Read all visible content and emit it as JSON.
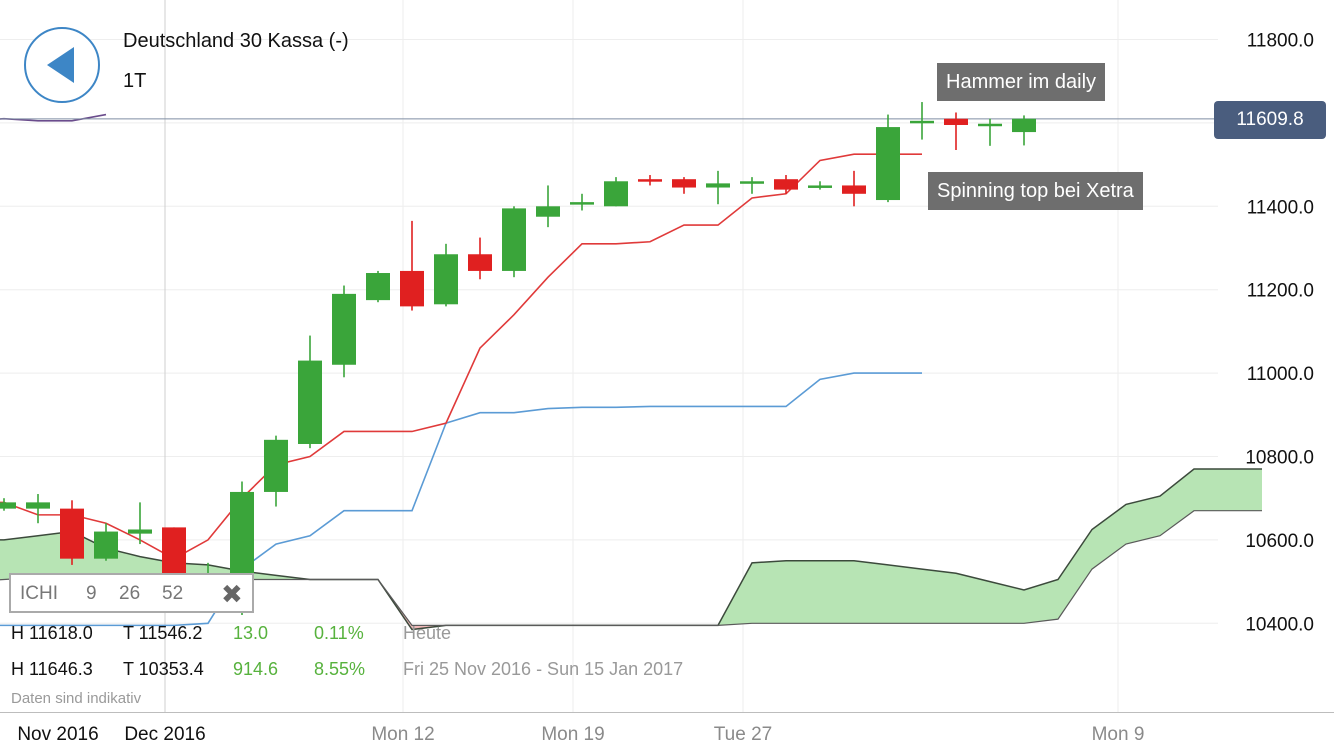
{
  "header": {
    "title": "Deutschland 30 Kassa (-)",
    "period": "1T"
  },
  "current_price": "11609.8",
  "annotations": {
    "hammer": "Hammer im daily",
    "spinning_top": "Spinning top bei Xetra"
  },
  "indicator": {
    "name": "ICHI",
    "params": [
      "9",
      "26",
      "52"
    ]
  },
  "stats": [
    {
      "high": "H 11618.0",
      "low": "T 11546.2",
      "change": "13.0",
      "pct": "0.11%",
      "range": "Heute"
    },
    {
      "high": "H 11646.3",
      "low": "T 10353.4",
      "change": "914.6",
      "pct": "8.55%",
      "range": "Fri 25 Nov 2016 - Sun 15 Jan 2017"
    }
  ],
  "disclaimer": "Daten sind indikativ",
  "colors": {
    "up": "#3aa53a",
    "down": "#e02020",
    "tenkan": "#e03a3a",
    "kijun": "#5b9bd5",
    "chikou": "#6a4c8c",
    "cloud_bull": "#b7e4b4",
    "cloud_bear": "#f0b8b8",
    "accent": "#3d86c6"
  },
  "chart_data": {
    "type": "candlestick",
    "title": "Deutschland 30 Kassa (-)",
    "ylim": [
      10170,
      11890
    ],
    "yticks": [
      10400,
      10600,
      10800,
      11000,
      11200,
      11400,
      11600,
      11800
    ],
    "ytick_labels": [
      "10400.0",
      "10600.0",
      "10800.0",
      "11000.0",
      "11200.0",
      "11400.0",
      "11600.0",
      "11800.0"
    ],
    "xtick_labels": [
      "Nov 2016",
      "Dec 2016",
      "Mon 12",
      "Mon 19",
      "Tue 27",
      "Mon 9"
    ],
    "candles": [
      {
        "o": 10675,
        "h": 10700,
        "l": 10670,
        "c": 10690
      },
      {
        "o": 10675,
        "h": 10710,
        "l": 10640,
        "c": 10690
      },
      {
        "o": 10675,
        "h": 10695,
        "l": 10540,
        "c": 10555
      },
      {
        "o": 10555,
        "h": 10640,
        "l": 10550,
        "c": 10620
      },
      {
        "o": 10615,
        "h": 10690,
        "l": 10590,
        "c": 10625
      },
      {
        "o": 10630,
        "h": 10630,
        "l": 10500,
        "c": 10510
      },
      {
        "o": 10515,
        "h": 10545,
        "l": 10505,
        "c": 10520
      },
      {
        "o": 10430,
        "h": 10740,
        "l": 10420,
        "c": 10715
      },
      {
        "o": 10715,
        "h": 10850,
        "l": 10680,
        "c": 10840
      },
      {
        "o": 10830,
        "h": 11090,
        "l": 10820,
        "c": 11030
      },
      {
        "o": 11020,
        "h": 11210,
        "l": 10990,
        "c": 11190
      },
      {
        "o": 11175,
        "h": 11245,
        "l": 11170,
        "c": 11240
      },
      {
        "o": 11245,
        "h": 11365,
        "l": 11150,
        "c": 11160
      },
      {
        "o": 11165,
        "h": 11310,
        "l": 11160,
        "c": 11285
      },
      {
        "o": 11285,
        "h": 11325,
        "l": 11225,
        "c": 11245
      },
      {
        "o": 11245,
        "h": 11400,
        "l": 11230,
        "c": 11395
      },
      {
        "o": 11375,
        "h": 11450,
        "l": 11350,
        "c": 11400
      },
      {
        "o": 11410,
        "h": 11430,
        "l": 11390,
        "c": 11410
      },
      {
        "o": 11400,
        "h": 11470,
        "l": 11400,
        "c": 11460
      },
      {
        "o": 11465,
        "h": 11475,
        "l": 11450,
        "c": 11460
      },
      {
        "o": 11465,
        "h": 11470,
        "l": 11430,
        "c": 11445
      },
      {
        "o": 11445,
        "h": 11485,
        "l": 11405,
        "c": 11455
      },
      {
        "o": 11455,
        "h": 11470,
        "l": 11430,
        "c": 11460
      },
      {
        "o": 11465,
        "h": 11475,
        "l": 11430,
        "c": 11440
      },
      {
        "o": 11450,
        "h": 11460,
        "l": 11440,
        "c": 11450
      },
      {
        "o": 11450,
        "h": 11485,
        "l": 11400,
        "c": 11430
      },
      {
        "o": 11415,
        "h": 11620,
        "l": 11410,
        "c": 11590
      },
      {
        "o": 11600,
        "h": 11650,
        "l": 11560,
        "c": 11605
      },
      {
        "o": 11610,
        "h": 11625,
        "l": 11535,
        "c": 11595
      },
      {
        "o": 11598,
        "h": 11610,
        "l": 11545,
        "c": 11598
      },
      {
        "o": 11578,
        "h": 11618,
        "l": 11546,
        "c": 11610
      }
    ],
    "tenkan": [
      10690,
      10690,
      10660,
      10660,
      10640,
      10600,
      10555,
      10600,
      10700,
      10780,
      10800,
      10860,
      10860,
      10860,
      10880,
      11060,
      11140,
      11230,
      11310,
      11310,
      11315,
      11355,
      11355,
      11420,
      11430,
      11510,
      11525,
      11525,
      11525
    ],
    "kijun": [
      10395,
      10395,
      10395,
      10395,
      10395,
      10395,
      10395,
      10400,
      10530,
      10590,
      10610,
      10670,
      10670,
      10670,
      10880,
      10905,
      10905,
      10915,
      10918,
      10918,
      10920,
      10920,
      10920,
      10920,
      10920,
      10985,
      11000,
      11000,
      11000
    ],
    "chikou": [
      11605,
      11610,
      11605,
      11605,
      11620
    ],
    "senkou_a": [
      10600,
      10600,
      10610,
      10620,
      10580,
      10560,
      10545,
      10540,
      10525,
      10515,
      10505,
      10505,
      10505,
      10385,
      10395,
      10395,
      10395,
      10395,
      10395,
      10395,
      10395,
      10395,
      10395,
      10545,
      10550,
      10550,
      10550,
      10540,
      10530,
      10520,
      10500,
      10480,
      10505,
      10625,
      10685,
      10705,
      10770,
      10770,
      10770
    ],
    "senkou_b": [
      10500,
      10505,
      10510,
      10505,
      10505,
      10505,
      10505,
      10505,
      10505,
      10505,
      10505,
      10505,
      10505,
      10395,
      10395,
      10395,
      10395,
      10395,
      10395,
      10395,
      10395,
      10395,
      10395,
      10400,
      10400,
      10400,
      10400,
      10400,
      10400,
      10400,
      10400,
      10400,
      10410,
      10530,
      10590,
      10610,
      10670,
      10670,
      10670
    ]
  }
}
